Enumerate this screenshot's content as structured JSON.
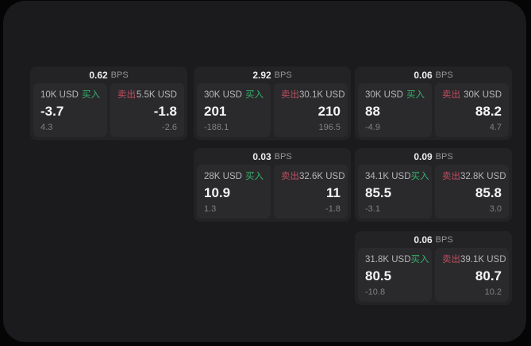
{
  "labels": {
    "bps_unit": "BPS",
    "buy": "买入",
    "sell": "卖出"
  },
  "colors": {
    "buy_green": "#35b06c",
    "sell_red": "#c04d60",
    "panel_background": "#1b1b1d",
    "card_background": "#232325",
    "pane_background": "#2a2a2c"
  },
  "cards": [
    {
      "bps": "0.62",
      "col": 0,
      "row": 0,
      "buy": {
        "amount": "10K USD",
        "value": "-3.7",
        "sub": "4.3"
      },
      "sell": {
        "amount": "5.5K USD",
        "value": "-1.8",
        "sub": "-2.6"
      }
    },
    {
      "bps": "2.92",
      "col": 1,
      "row": 0,
      "buy": {
        "amount": "30K USD",
        "value": "201",
        "sub": "-188.1"
      },
      "sell": {
        "amount": "30.1K USD",
        "value": "210",
        "sub": "196.5"
      }
    },
    {
      "bps": "0.06",
      "col": 2,
      "row": 0,
      "buy": {
        "amount": "30K USD",
        "value": "88",
        "sub": "-4.9"
      },
      "sell": {
        "amount": "30K USD",
        "value": "88.2",
        "sub": "4.7"
      }
    },
    {
      "bps": "0.03",
      "col": 1,
      "row": 1,
      "buy": {
        "amount": "28K USD",
        "value": "10.9",
        "sub": "1.3"
      },
      "sell": {
        "amount": "32.6K USD",
        "value": "11",
        "sub": "-1.8"
      }
    },
    {
      "bps": "0.09",
      "col": 2,
      "row": 1,
      "buy": {
        "amount": "34.1K USD",
        "value": "85.5",
        "sub": "-3.1"
      },
      "sell": {
        "amount": "32.8K USD",
        "value": "85.8",
        "sub": "3.0"
      }
    },
    {
      "bps": "0.06",
      "col": 2,
      "row": 2,
      "buy": {
        "amount": "31.8K USD",
        "value": "80.5",
        "sub": "-10.8"
      },
      "sell": {
        "amount": "39.1K USD",
        "value": "80.7",
        "sub": "10.2"
      }
    }
  ]
}
